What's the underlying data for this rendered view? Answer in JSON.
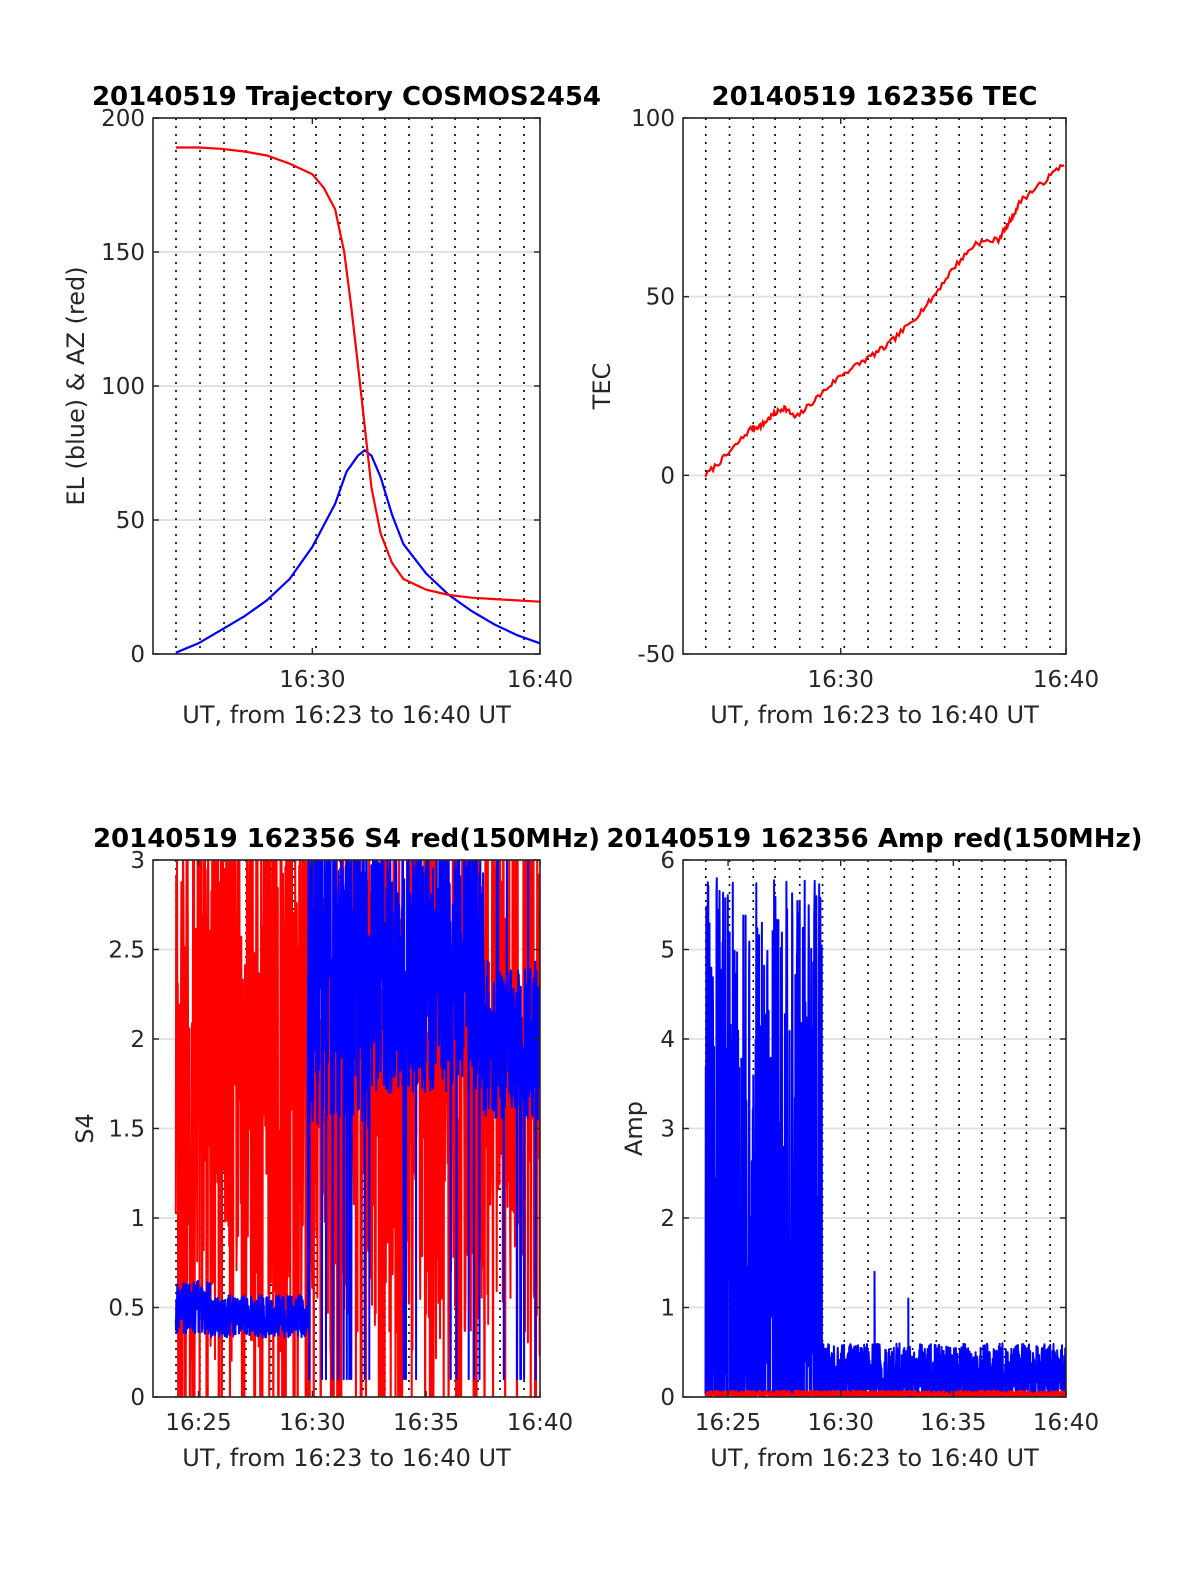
{
  "colors": {
    "el": "#0000ff",
    "az": "#ff0000",
    "tec": "#ff0000",
    "s4_red": "#ff0000",
    "s4_blue": "#0000ff",
    "amp_blue": "#0000ff",
    "amp_red": "#ff0000"
  },
  "chart_data": [
    {
      "type": "line",
      "title": "20140519 Trajectory COSMOS2454",
      "xlabel": "UT, from 16:23 to 16:40 UT",
      "ylabel": "EL (blue) & AZ (red)",
      "xlim": [
        "16:23",
        "16:40"
      ],
      "xticks": [
        "16:30",
        "16:40"
      ],
      "ylim": [
        0,
        200
      ],
      "yticks": [
        0,
        50,
        100,
        150,
        200
      ],
      "grid": true,
      "series": [
        {
          "color": "#0000ff",
          "points": [
            [
              "16:24.0",
              0.5
            ],
            [
              "16:25.0",
              4
            ],
            [
              "16:26.0",
              9
            ],
            [
              "16:27.0",
              14
            ],
            [
              "16:28.0",
              20
            ],
            [
              "16:29.0",
              28
            ],
            [
              "16:30.0",
              40
            ],
            [
              "16:31.0",
              56
            ],
            [
              "16:31.5",
              68
            ],
            [
              "16:32.0",
              74
            ],
            [
              "16:32.3",
              76
            ],
            [
              "16:32.6",
              74
            ],
            [
              "16:33.0",
              66
            ],
            [
              "16:33.5",
              52
            ],
            [
              "16:34.0",
              41
            ],
            [
              "16:35.0",
              30
            ],
            [
              "16:36.0",
              22
            ],
            [
              "16:37.0",
              16
            ],
            [
              "16:38.0",
              11
            ],
            [
              "16:39.0",
              7
            ],
            [
              "16:40.0",
              4
            ]
          ]
        },
        {
          "color": "#ff0000",
          "points": [
            [
              "16:24.0",
              189
            ],
            [
              "16:25.0",
              189
            ],
            [
              "16:26.0",
              188.5
            ],
            [
              "16:27.0",
              187.5
            ],
            [
              "16:28.0",
              186
            ],
            [
              "16:29.0",
              183
            ],
            [
              "16:30.0",
              179
            ],
            [
              "16:30.5",
              174
            ],
            [
              "16:31.0",
              166
            ],
            [
              "16:31.4",
              150
            ],
            [
              "16:31.7",
              130
            ],
            [
              "16:32.0",
              108
            ],
            [
              "16:32.3",
              85
            ],
            [
              "16:32.6",
              62
            ],
            [
              "16:33.0",
              45
            ],
            [
              "16:33.5",
              34
            ],
            [
              "16:34.0",
              28
            ],
            [
              "16:35.0",
              24
            ],
            [
              "16:36.0",
              22
            ],
            [
              "16:37.0",
              21
            ],
            [
              "16:38.0",
              20.5
            ],
            [
              "16:39.0",
              20
            ],
            [
              "16:40.0",
              19.5
            ]
          ]
        }
      ]
    },
    {
      "type": "line",
      "title": "20140519 162356 TEC",
      "xlabel": "UT, from 16:23 to 16:40 UT",
      "ylabel": "TEC",
      "xlim": [
        "16:23",
        "16:40"
      ],
      "xticks": [
        "16:30",
        "16:40"
      ],
      "ylim": [
        -50,
        100
      ],
      "yticks": [
        -50,
        0,
        50,
        100
      ],
      "grid": true,
      "series": [
        {
          "color": "#ff0000",
          "points": [
            [
              "16:24.0",
              0
            ],
            [
              "16:25.0",
              6
            ],
            [
              "16:26.0",
              13
            ],
            [
              "16:26.5",
              14
            ],
            [
              "16:27.0",
              17
            ],
            [
              "16:27.5",
              19
            ],
            [
              "16:28.0",
              16
            ],
            [
              "16:29.0",
              22
            ],
            [
              "16:30.0",
              28
            ],
            [
              "16:31.0",
              32
            ],
            [
              "16:32.0",
              36
            ],
            [
              "16:33.0",
              42
            ],
            [
              "16:34.0",
              49
            ],
            [
              "16:35.0",
              58
            ],
            [
              "16:36.0",
              65
            ],
            [
              "16:37.0",
              66
            ],
            [
              "16:37.5",
              71
            ],
            [
              "16:38.0",
              77
            ],
            [
              "16:39.0",
              82
            ],
            [
              "16:40.0",
              88
            ]
          ]
        }
      ]
    },
    {
      "type": "line",
      "title": "20140519 162356 S4 red(150MHz)",
      "xlabel": "UT, from 16:23 to 16:40 UT",
      "ylabel": "S4",
      "xlim": [
        "16:23",
        "16:40"
      ],
      "xticks": [
        "16:25",
        "16:30",
        "16:35",
        "16:40"
      ],
      "ylim": [
        0,
        3
      ],
      "yticks": [
        0,
        0.5,
        1,
        1.5,
        2,
        2.5,
        3
      ],
      "grid": true,
      "series": [
        {
          "color": "#ff0000",
          "noise": {
            "kind": "spikes",
            "baseline": 1.8,
            "spread": 3.2
          }
        },
        {
          "color": "#0000ff",
          "noise": {
            "segments": [
              [
                "16:24.0",
                "16:25.5",
                0.5,
                0.15
              ],
              [
                "16:25.5",
                "16:29.8",
                0.45,
                0.12
              ],
              [
                "16:29.8",
                "16:32.5",
                2.4,
                0.9
              ],
              [
                "16:32.5",
                "16:37.5",
                2.4,
                0.7
              ],
              [
                "16:37.5",
                "16:40.0",
                2.0,
                0.45
              ]
            ]
          }
        }
      ]
    },
    {
      "type": "line",
      "title": "20140519 162356 Amp red(150MHz)",
      "xlabel": "UT, from 16:23 to 16:40 UT",
      "ylabel": "Amp",
      "xlim": [
        "16:23",
        "16:40"
      ],
      "xticks": [
        "16:25",
        "16:30",
        "16:35",
        "16:40"
      ],
      "ylim": [
        0,
        6
      ],
      "yticks": [
        0,
        1,
        2,
        3,
        4,
        5,
        6
      ],
      "grid": true,
      "series": [
        {
          "color": "#0000ff",
          "noise": {
            "segments": [
              [
                "16:24.0",
                "16:29.2",
                1.6,
                4.2
              ],
              [
                "16:29.2",
                "16:40.0",
                0.25,
                0.35
              ]
            ],
            "peaks": [
              [
                "16:25.0",
                5.2
              ],
              [
                "16:26.5",
                5.3
              ],
              [
                "16:28.0",
                4.3
              ],
              [
                "16:31.5",
                1.4
              ],
              [
                "16:33.0",
                1.1
              ]
            ]
          }
        },
        {
          "color": "#ff0000",
          "noise": {
            "segments": [
              [
                "16:24.0",
                "16:40.0",
                0.02,
                0.05
              ]
            ]
          }
        }
      ]
    }
  ]
}
